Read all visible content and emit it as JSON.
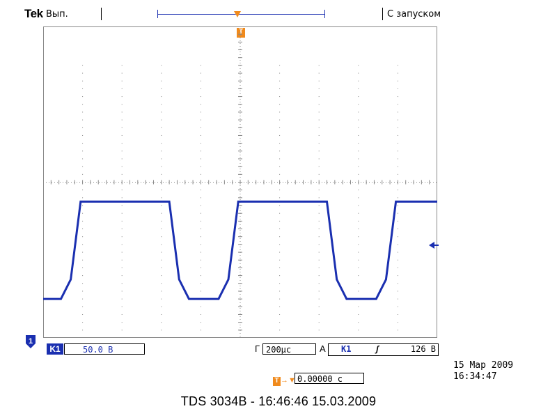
{
  "header": {
    "brand": "Tek",
    "acquisition_state": "Вып.",
    "trigger_status": "С запуском"
  },
  "channel": {
    "badge": "1",
    "label": "K1",
    "volts_per_div": "50.0 В"
  },
  "horizontal": {
    "label": "Г",
    "time_per_div": "200µс",
    "position": "0.00000 с"
  },
  "trigger": {
    "mode_label": "A",
    "source": "K1",
    "edge_symbol": "ʃ",
    "level": "126 В"
  },
  "timestamp": {
    "date": "15 Мар 2009",
    "time": "16:34:47"
  },
  "footer": {
    "caption": "TDS 3034B - 16:46:46   15.03.2009"
  },
  "colors": {
    "trace": "#1a2fb0",
    "marker": "#f08a1c",
    "grid": "#888888"
  },
  "icons": {
    "trigger_marker": "T-marker-orange",
    "channel_ground": "ground-level-badge",
    "trigger_level": "left-arrow-marker"
  },
  "chart_data": {
    "type": "line",
    "grid": true,
    "x_divisions": 10,
    "y_divisions": 8,
    "xlabel": "",
    "ylabel": "",
    "series": [
      {
        "x_div": [
          0,
          0.45,
          0.7,
          0.95,
          1.7,
          3.2,
          3.45,
          3.7,
          4.45,
          4.7,
          4.95,
          5.7,
          7.2,
          7.45,
          7.7,
          8.45,
          8.7,
          8.95,
          9.7,
          10
        ],
        "y_div": [
          1,
          1,
          1.5,
          3.5,
          3.5,
          3.5,
          1.5,
          1,
          1,
          1.5,
          3.5,
          3.5,
          3.5,
          1.5,
          1,
          1,
          1.5,
          3.5,
          3.5,
          3.5
        ]
      }
    ]
  }
}
